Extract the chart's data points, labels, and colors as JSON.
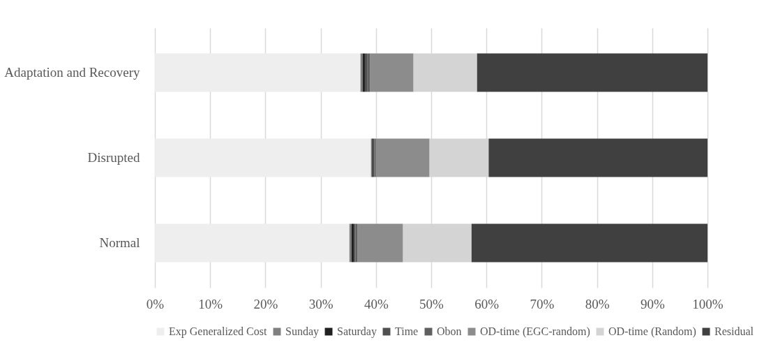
{
  "chart_data": {
    "type": "bar",
    "orientation": "horizontal",
    "stacked": true,
    "categories": [
      "Adaptation and Recovery",
      "Disrupted",
      "Normal"
    ],
    "series": [
      {
        "name": "Exp Generalized Cost",
        "color": "#eeeeee",
        "values": [
          37.2,
          39.1,
          35.2
        ]
      },
      {
        "name": "Sunday",
        "color": "#808080",
        "values": [
          0.4,
          0.2,
          0.4
        ]
      },
      {
        "name": "Saturday",
        "color": "#202020",
        "values": [
          0.4,
          0.2,
          0.4
        ]
      },
      {
        "name": "Time",
        "color": "#505050",
        "values": [
          0.4,
          0.2,
          0.3
        ]
      },
      {
        "name": "Obon",
        "color": "#606060",
        "values": [
          0.5,
          0.3,
          0.4
        ]
      },
      {
        "name": "OD-time (EGC-random)",
        "color": "#8c8c8c",
        "values": [
          7.9,
          9.7,
          8.2
        ]
      },
      {
        "name": "OD-time (Random)",
        "color": "#d4d4d4",
        "values": [
          11.5,
          10.7,
          12.4
        ]
      },
      {
        "name": "Residual",
        "color": "#404040",
        "values": [
          41.7,
          39.6,
          42.7
        ]
      }
    ],
    "xlim": [
      0,
      100
    ],
    "xticks": [
      {
        "value": 0,
        "label": "0%"
      },
      {
        "value": 10,
        "label": "10%"
      },
      {
        "value": 20,
        "label": "20%"
      },
      {
        "value": 30,
        "label": "30%"
      },
      {
        "value": 40,
        "label": "40%"
      },
      {
        "value": 50,
        "label": "50%"
      },
      {
        "value": 60,
        "label": "60%"
      },
      {
        "value": 70,
        "label": "70%"
      },
      {
        "value": 80,
        "label": "80%"
      },
      {
        "value": 90,
        "label": "90%"
      },
      {
        "value": 100,
        "label": "100%"
      }
    ],
    "grid": "x",
    "legend": "bottom"
  }
}
